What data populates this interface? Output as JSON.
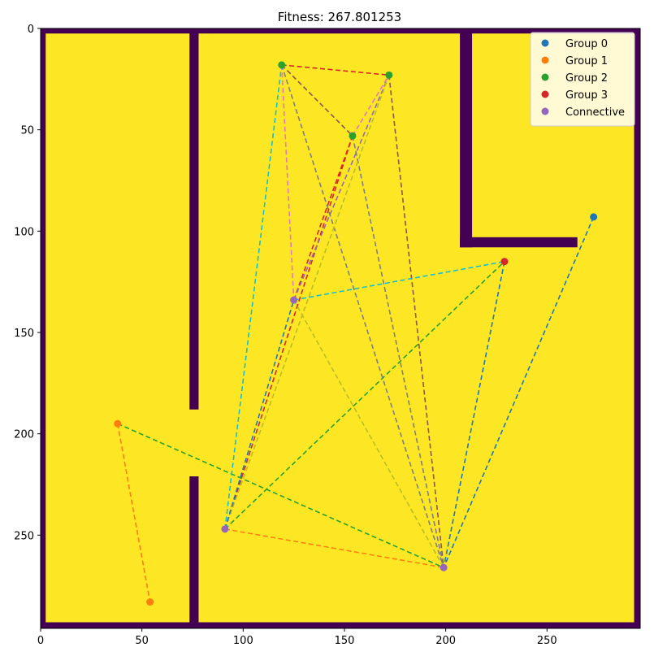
{
  "title": "Fitness: 267.801253",
  "chart_data": {
    "type": "scatter",
    "xlim": [
      0,
      296
    ],
    "ylim": [
      0,
      296
    ],
    "y_inverted": true,
    "x_ticks": [
      0,
      50,
      100,
      150,
      200,
      250
    ],
    "y_ticks": [
      0,
      50,
      100,
      150,
      200,
      250
    ],
    "grid": false,
    "legend_position": "top-right",
    "background": {
      "floor_color": "#fde725",
      "wall_color": "#440154",
      "walls": [
        {
          "x0": 0,
          "x1": 296,
          "y0": 0,
          "y1": 2.5
        },
        {
          "x0": 0,
          "x1": 296,
          "y0": 293,
          "y1": 296
        },
        {
          "x0": 0,
          "x1": 2.5,
          "y0": 0,
          "y1": 296
        },
        {
          "x0": 293,
          "x1": 296,
          "y0": 0,
          "y1": 296
        },
        {
          "x0": 73.5,
          "x1": 78,
          "y0": 0,
          "y1": 188
        },
        {
          "x0": 73.5,
          "x1": 78,
          "y0": 221,
          "y1": 296
        },
        {
          "x0": 207,
          "x1": 213,
          "y0": 0,
          "y1": 108
        },
        {
          "x0": 207,
          "x1": 265,
          "y0": 103,
          "y1": 108
        }
      ]
    },
    "series": [
      {
        "name": "Group 0",
        "color": "#1f77b4",
        "points": [
          [
            273,
            93
          ]
        ]
      },
      {
        "name": "Group 1",
        "color": "#ff7f0e",
        "points": [
          [
            38,
            195
          ],
          [
            54,
            283
          ]
        ]
      },
      {
        "name": "Group 2",
        "color": "#2ca02c",
        "points": [
          [
            119,
            18
          ],
          [
            154,
            53
          ],
          [
            172,
            23
          ]
        ]
      },
      {
        "name": "Group 3",
        "color": "#d62728",
        "points": [
          [
            229,
            115
          ]
        ]
      },
      {
        "name": "Connective",
        "color": "#9467bd",
        "points": [
          [
            91,
            247
          ],
          [
            125,
            134
          ],
          [
            199,
            266
          ]
        ]
      }
    ],
    "edges": [
      {
        "from": [
          273,
          93
        ],
        "to": [
          199,
          266
        ],
        "color": "#1f77b4"
      },
      {
        "from": [
          229,
          115
        ],
        "to": [
          199,
          266
        ],
        "color": "#1f77b4"
      },
      {
        "from": [
          38,
          195
        ],
        "to": [
          54,
          283
        ],
        "color": "#ff7f0e"
      },
      {
        "from": [
          91,
          247
        ],
        "to": [
          199,
          266
        ],
        "color": "#ff7f0e"
      },
      {
        "from": [
          38,
          195
        ],
        "to": [
          199,
          266
        ],
        "color": "#2ca02c"
      },
      {
        "from": [
          91,
          247
        ],
        "to": [
          229,
          115
        ],
        "color": "#2ca02c"
      },
      {
        "from": [
          119,
          18
        ],
        "to": [
          172,
          23
        ],
        "color": "#d62728"
      },
      {
        "from": [
          91,
          247
        ],
        "to": [
          154,
          53
        ],
        "color": "#d62728"
      },
      {
        "from": [
          125,
          134
        ],
        "to": [
          154,
          53
        ],
        "color": "#d62728"
      },
      {
        "from": [
          119,
          18
        ],
        "to": [
          154,
          53
        ],
        "color": "#8c564b"
      },
      {
        "from": [
          172,
          23
        ],
        "to": [
          199,
          266
        ],
        "color": "#8c564b"
      },
      {
        "from": [
          125,
          134
        ],
        "to": [
          172,
          23
        ],
        "color": "#9467bd"
      },
      {
        "from": [
          119,
          18
        ],
        "to": [
          125,
          134
        ],
        "color": "#e377c2"
      },
      {
        "from": [
          154,
          53
        ],
        "to": [
          172,
          23
        ],
        "color": "#e377c2"
      },
      {
        "from": [
          119,
          18
        ],
        "to": [
          199,
          266
        ],
        "color": "#7f7f7f"
      },
      {
        "from": [
          154,
          53
        ],
        "to": [
          199,
          266
        ],
        "color": "#7f7f7f"
      },
      {
        "from": [
          91,
          247
        ],
        "to": [
          172,
          23
        ],
        "color": "#bcbd22"
      },
      {
        "from": [
          125,
          134
        ],
        "to": [
          199,
          266
        ],
        "color": "#bcbd22"
      },
      {
        "from": [
          91,
          247
        ],
        "to": [
          119,
          18
        ],
        "color": "#17becf"
      },
      {
        "from": [
          125,
          134
        ],
        "to": [
          229,
          115
        ],
        "color": "#17becf"
      },
      {
        "from": [
          91,
          247
        ],
        "to": [
          125,
          134
        ],
        "color": "#1f77b4"
      }
    ]
  }
}
